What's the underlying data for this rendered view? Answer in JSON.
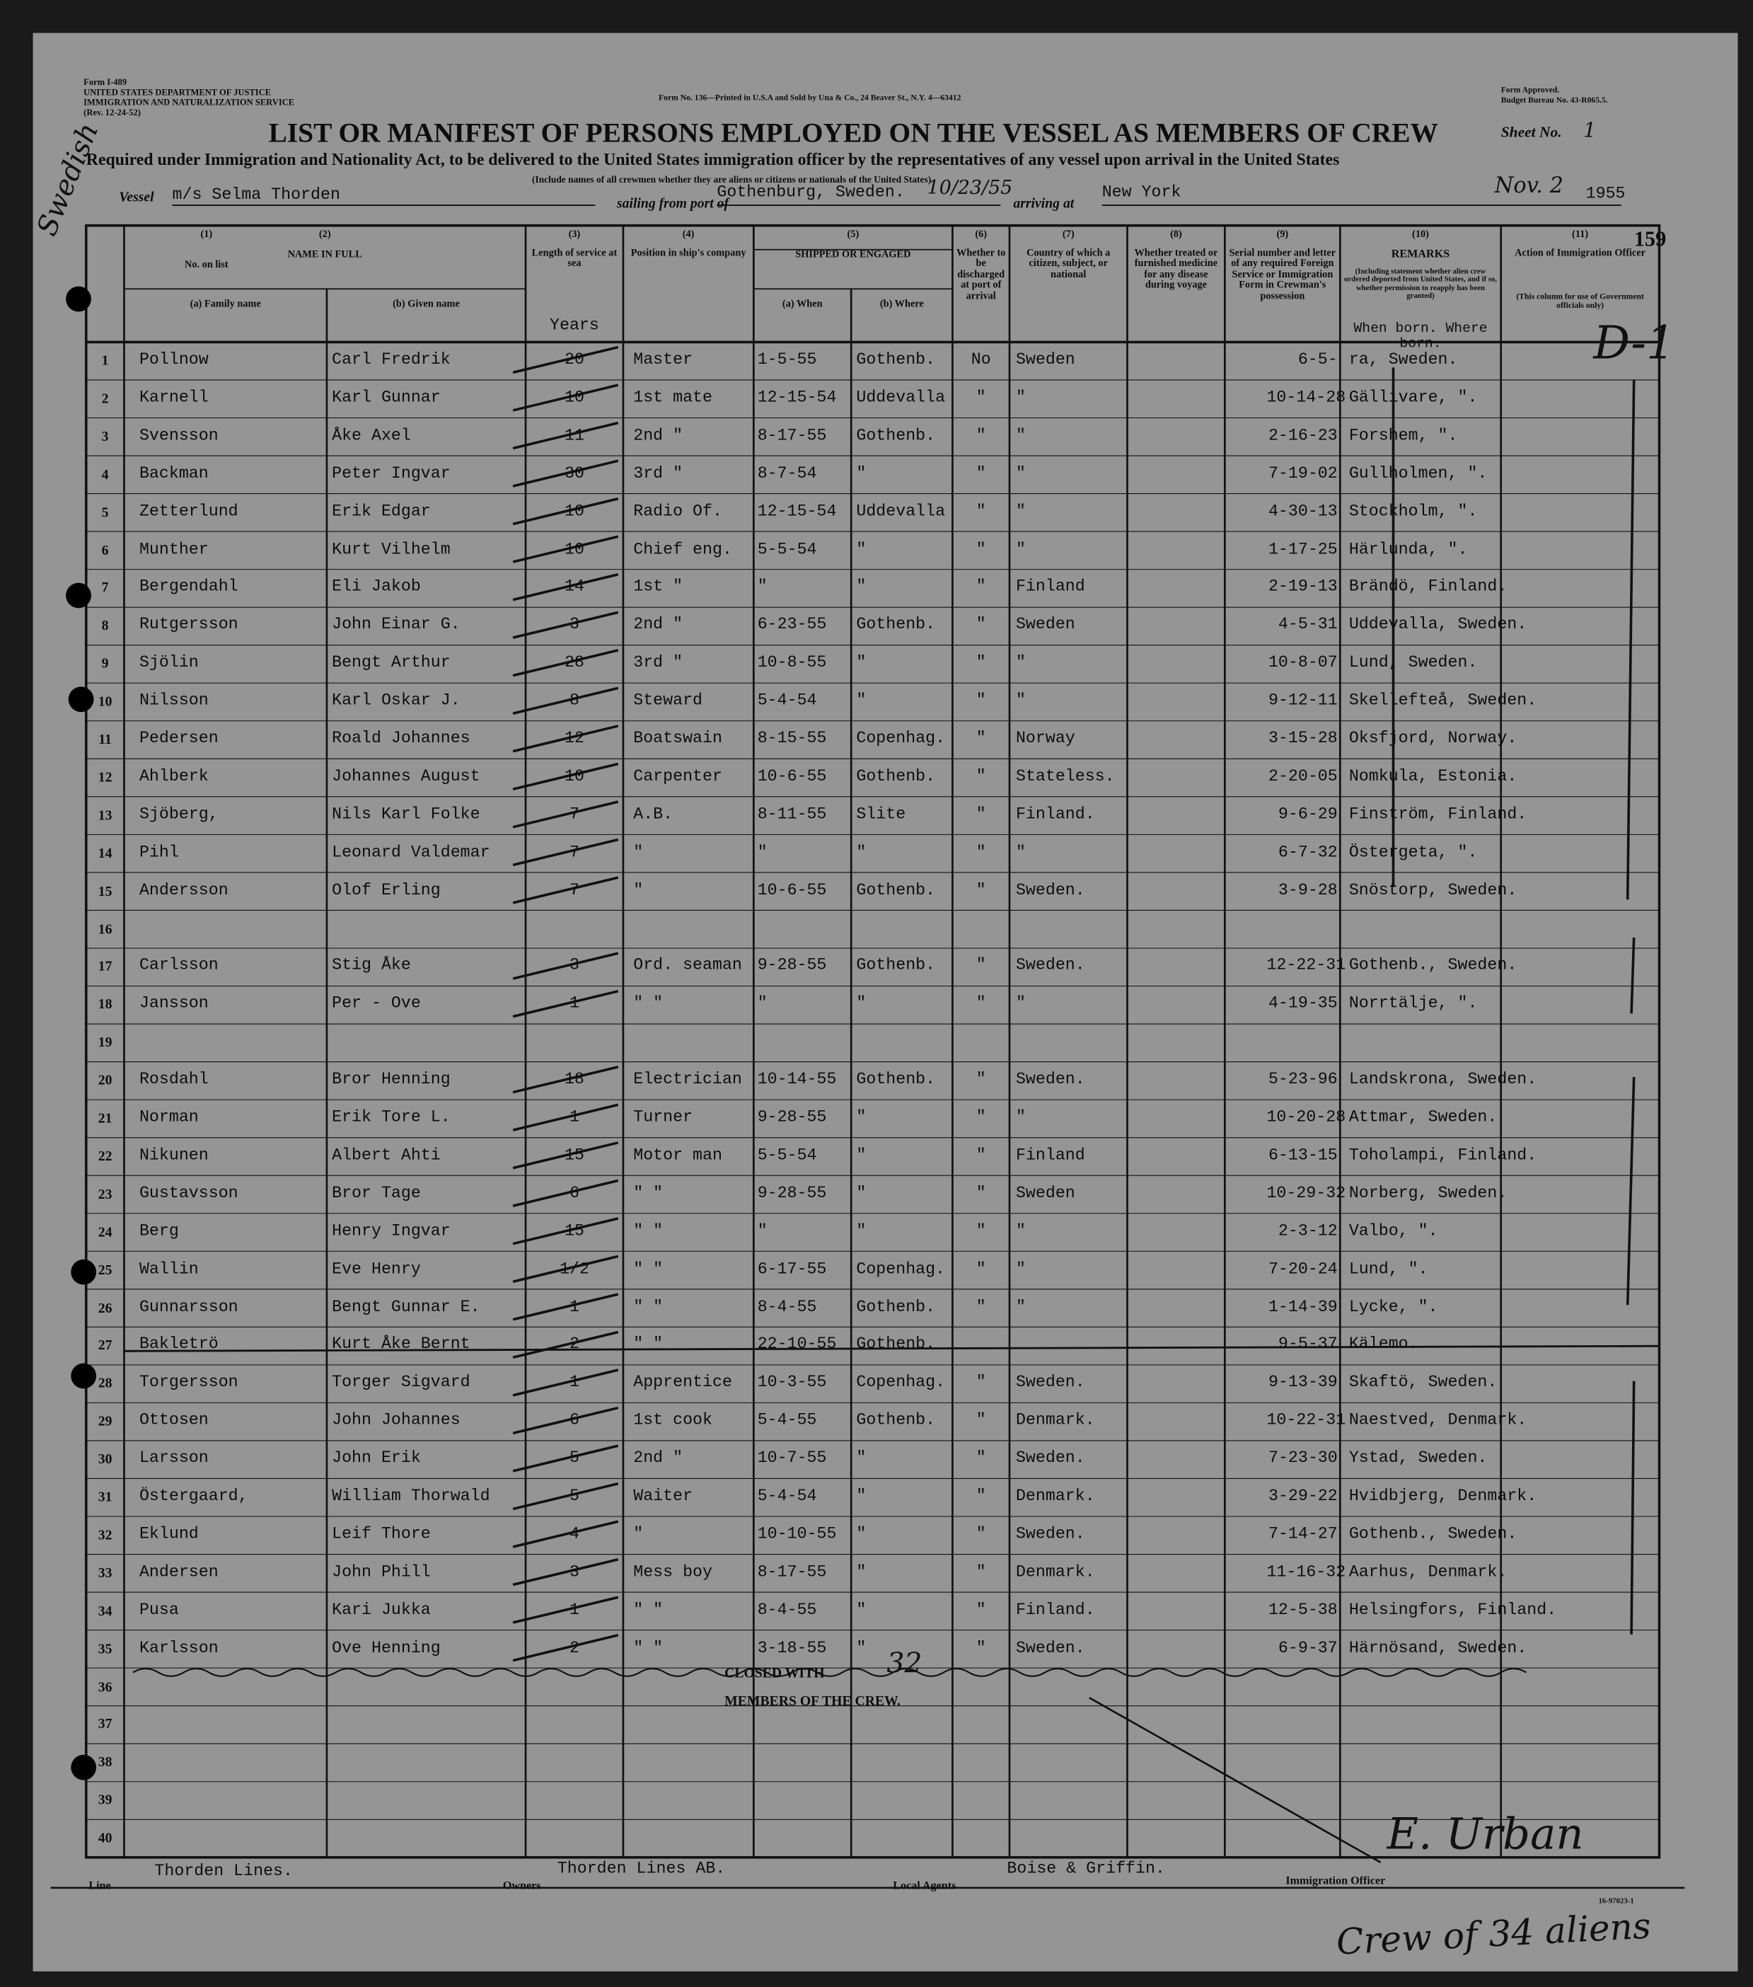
{
  "header": {
    "agency": [
      "Form I-489",
      "UNITED STATES DEPARTMENT OF JUSTICE",
      "IMMIGRATION AND NATURALIZATION SERVICE",
      "(Rev. 12-24-52)"
    ],
    "printer": "Form No. 136—Printed in U.S.A and Sold by Una & Co., 24 Beaver St., N.Y. 4—63412",
    "approval": [
      "Form Approved.",
      "Budget Bureau No. 43-R065.5."
    ],
    "title": "LIST OR MANIFEST OF PERSONS EMPLOYED ON THE VESSEL AS MEMBERS OF CREW",
    "sheet_label": "Sheet No.",
    "sheet_no": "1",
    "subtitle": "Required under Immigration and Nationality Act, to be delivered to the United States immigration officer by the representatives of any vessel upon arrival in the United States",
    "note": "(Include names of all crewmen whether they are aliens or citizens or nationals of the United States)"
  },
  "voyage": {
    "vessel_label": "Vessel",
    "vessel": "m/s Selma Thorden",
    "port_label": "sailing from port of",
    "port": "Gothenburg, Sweden.",
    "sailing_date": "10/23/55",
    "arriving_label": "arriving at",
    "arrival_port": "New York",
    "arrival_date": "Nov. 2",
    "year": "1955"
  },
  "page_number": "159",
  "columns": [
    {
      "num": "(1)",
      "label": "No. on list"
    },
    {
      "num": "(2)",
      "label": "NAME IN FULL",
      "sub": [
        "(a) Family name",
        "(b) Given name"
      ]
    },
    {
      "num": "(3)",
      "label": "Length of service at sea",
      "sub": [
        "Years"
      ]
    },
    {
      "num": "(4)",
      "label": "Position in ship's company"
    },
    {
      "num": "(5)",
      "label": "SHIPPED OR ENGAGED",
      "sub": [
        "(a) When",
        "(b) Where"
      ]
    },
    {
      "num": "(6)",
      "label": "Whether to be discharged at port of arrival"
    },
    {
      "num": "(7)",
      "label": "Country of which a citizen, subject, or national"
    },
    {
      "num": "(8)",
      "label": "Whether treated or furnished medicine for any disease during voyage"
    },
    {
      "num": "(9)",
      "label": "Serial number and letter of any required Foreign Service or Immigration Form in Crewman's possession"
    },
    {
      "num": "(10)",
      "label": "REMARKS",
      "sub": [
        "(Including statement whether alien crew ordered deported from United States, and if so, whether permission to reapply has been granted)",
        "When born. Where born."
      ]
    },
    {
      "num": "(11)",
      "label": "Action of Immigration Officer",
      "sub": [
        "(This column for use of Government officials only)"
      ]
    }
  ],
  "rows": [
    {
      "no": 1,
      "family": "Pollnow",
      "given": "Carl Fredrik",
      "years": "20",
      "position": "Master",
      "shipped_when": "1-5-55",
      "shipped_where": "Gothenb.",
      "discharged": "No",
      "country": "Sweden",
      "born_when": "6-5-",
      "born_where": "ra, Sweden."
    },
    {
      "no": 2,
      "family": "Karnell",
      "given": "Karl Gunnar",
      "years": "10",
      "position": "1st mate",
      "shipped_when": "12-15-54",
      "shipped_where": "Uddevalla",
      "discharged": "\"",
      "country": "\"",
      "born_when": "10-14-28",
      "born_where": "Gällivare, \"."
    },
    {
      "no": 3,
      "family": "Svensson",
      "given": "Åke Axel",
      "years": "11",
      "position": "2nd  \"",
      "shipped_when": "8-17-55",
      "shipped_where": "Gothenb.",
      "discharged": "\"",
      "country": "\"",
      "born_when": "2-16-23",
      "born_where": "Forshem, \"."
    },
    {
      "no": 4,
      "family": "Backman",
      "given": "Peter Ingvar",
      "years": "30",
      "position": "3rd  \"",
      "shipped_when": "8-7-54",
      "shipped_where": "\"",
      "discharged": "\"",
      "country": "\"",
      "born_when": "7-19-02",
      "born_where": "Gullholmen, \"."
    },
    {
      "no": 5,
      "family": "Zetterlund",
      "given": "Erik Edgar",
      "years": "10",
      "position": "Radio Of.",
      "shipped_when": "12-15-54",
      "shipped_where": "Uddevalla",
      "discharged": "\"",
      "country": "\"",
      "born_when": "4-30-13",
      "born_where": "Stockholm, \"."
    },
    {
      "no": 6,
      "family": "Munther",
      "given": "Kurt Vilhelm",
      "years": "10",
      "position": "Chief eng.",
      "shipped_when": "5-5-54",
      "shipped_where": "\"",
      "discharged": "\"",
      "country": "\"",
      "born_when": "1-17-25",
      "born_where": "Härlunda, \"."
    },
    {
      "no": 7,
      "family": "Bergendahl",
      "given": "Eli Jakob",
      "years": "14",
      "position": "1st  \"",
      "shipped_when": "\"",
      "shipped_where": "\"",
      "discharged": "\"",
      "country": "Finland",
      "born_when": "2-19-13",
      "born_where": "Brändö, Finland."
    },
    {
      "no": 8,
      "family": "Rutgersson",
      "given": "John Einar G.",
      "years": "3",
      "position": "2nd  \"",
      "shipped_when": "6-23-55",
      "shipped_where": "Gothenb.",
      "discharged": "\"",
      "country": "Sweden",
      "born_when": "4-5-31",
      "born_where": "Uddevalla, Sweden."
    },
    {
      "no": 9,
      "family": "Sjölin",
      "given": "Bengt Arthur",
      "years": "28",
      "position": "3rd  \"",
      "shipped_when": "10-8-55",
      "shipped_where": "\"",
      "discharged": "\"",
      "country": "\"",
      "born_when": "10-8-07",
      "born_where": "Lund, Sweden."
    },
    {
      "no": 10,
      "family": "Nilsson",
      "given": "Karl Oskar J.",
      "years": "8",
      "position": "Steward",
      "shipped_when": "5-4-54",
      "shipped_where": "\"",
      "discharged": "\"",
      "country": "\"",
      "born_when": "9-12-11",
      "born_where": "Skellefteå, Sweden."
    },
    {
      "no": 11,
      "family": "Pedersen",
      "given": "Roald Johannes",
      "years": "12",
      "position": "Boatswain",
      "shipped_when": "8-15-55",
      "shipped_where": "Copenhag.",
      "discharged": "\"",
      "country": "Norway",
      "born_when": "3-15-28",
      "born_where": "Oksfjord, Norway."
    },
    {
      "no": 12,
      "family": "Ahlberk",
      "given": "Johannes August",
      "years": "10",
      "position": "Carpenter",
      "shipped_when": "10-6-55",
      "shipped_where": "Gothenb.",
      "discharged": "\"",
      "country": "Stateless.",
      "born_when": "2-20-05",
      "born_where": "Nomkula, Estonia."
    },
    {
      "no": 13,
      "family": "Sjöberg,",
      "given": "Nils Karl Folke",
      "years": "7",
      "position": "A.B.",
      "shipped_when": "8-11-55",
      "shipped_where": "Slite",
      "discharged": "\"",
      "country": "Finland.",
      "born_when": "9-6-29",
      "born_where": "Finström, Finland."
    },
    {
      "no": 14,
      "family": "Pihl",
      "given": "Leonard Valdemar",
      "years": "7",
      "position": "\"",
      "shipped_when": "\"",
      "shipped_where": "\"",
      "discharged": "\"",
      "country": "\"",
      "born_when": "6-7-32",
      "born_where": "Östergeta, \"."
    },
    {
      "no": 15,
      "family": "Andersson",
      "given": "Olof Erling",
      "years": "7",
      "position": "\"",
      "shipped_when": "10-6-55",
      "shipped_where": "Gothenb.",
      "discharged": "\"",
      "country": "Sweden.",
      "born_when": "3-9-28",
      "born_where": "Snöstorp, Sweden."
    },
    {
      "no": 16
    },
    {
      "no": 17,
      "family": "Carlsson",
      "given": "Stig Åke",
      "years": "3",
      "position": "Ord. seaman",
      "shipped_when": "9-28-55",
      "shipped_where": "Gothenb.",
      "discharged": "\"",
      "country": "Sweden.",
      "born_when": "12-22-31",
      "born_where": "Gothenb., Sweden."
    },
    {
      "no": 18,
      "family": "Jansson",
      "given": "Per - Ove",
      "years": "1",
      "position": "\"   \"",
      "shipped_when": "\"",
      "shipped_where": "\"",
      "discharged": "\"",
      "country": "\"",
      "born_when": "4-19-35",
      "born_where": "Norrtälje, \"."
    },
    {
      "no": 19
    },
    {
      "no": 20,
      "family": "Rosdahl",
      "given": "Bror Henning",
      "years": "18",
      "position": "Electrician",
      "shipped_when": "10-14-55",
      "shipped_where": "Gothenb.",
      "discharged": "\"",
      "country": "Sweden.",
      "born_when": "5-23-96",
      "born_where": "Landskrona, Sweden."
    },
    {
      "no": 21,
      "family": "Norman",
      "given": "Erik Tore L.",
      "years": "1",
      "position": "Turner",
      "shipped_when": "9-28-55",
      "shipped_where": "\"",
      "discharged": "\"",
      "country": "\"",
      "born_when": "10-20-28",
      "born_where": "Attmar, Sweden."
    },
    {
      "no": 22,
      "family": "Nikunen",
      "given": "Albert Ahti",
      "years": "15",
      "position": "Motor man",
      "shipped_when": "5-5-54",
      "shipped_where": "\"",
      "discharged": "\"",
      "country": "Finland",
      "born_when": "6-13-15",
      "born_where": "Toholampi, Finland."
    },
    {
      "no": 23,
      "family": "Gustavsson",
      "given": "Bror Tage",
      "years": "6",
      "position": "\"   \"",
      "shipped_when": "9-28-55",
      "shipped_where": "\"",
      "discharged": "\"",
      "country": "Sweden",
      "born_when": "10-29-32",
      "born_where": "Norberg, Sweden."
    },
    {
      "no": 24,
      "family": "Berg",
      "given": "Henry Ingvar",
      "years": "15",
      "position": "\"   \"",
      "shipped_when": "\"",
      "shipped_where": "\"",
      "discharged": "\"",
      "country": "\"",
      "born_when": "2-3-12",
      "born_where": "Valbo, \"."
    },
    {
      "no": 25,
      "family": "Wallin",
      "given": "Eve Henry",
      "years": "1/2",
      "position": "\"   \"",
      "shipped_when": "6-17-55",
      "shipped_where": "Copenhag.",
      "discharged": "\"",
      "country": "\"",
      "born_when": "7-20-24",
      "born_where": "Lund, \"."
    },
    {
      "no": 26,
      "family": "Gunnarsson",
      "given": "Bengt Gunnar E.",
      "years": "1",
      "position": "\"   \"",
      "shipped_when": "8-4-55",
      "shipped_where": "Gothenb.",
      "discharged": "\"",
      "country": "\"",
      "born_when": "1-14-39",
      "born_where": "Lycke, \"."
    },
    {
      "no": 27,
      "family": "Bakletrö",
      "given": "Kurt Åke Bernt",
      "years": "2",
      "position": "\"   \"",
      "shipped_when": "22-10-55",
      "shipped_where": "Gothenb.",
      "born_when": "9-5-37",
      "born_where": "Kälemo.",
      "struck": true
    },
    {
      "no": 28,
      "family": "Torgersson",
      "given": "Torger Sigvard",
      "years": "1",
      "position": "Apprentice",
      "shipped_when": "10-3-55",
      "shipped_where": "Copenhag.",
      "discharged": "\"",
      "country": "Sweden.",
      "born_when": "9-13-39",
      "born_where": "Skaftö, Sweden."
    },
    {
      "no": 29,
      "family": "Ottosen",
      "given": "John Johannes",
      "years": "6",
      "position": "1st cook",
      "shipped_when": "5-4-55",
      "shipped_where": "Gothenb.",
      "discharged": "\"",
      "country": "Denmark.",
      "born_when": "10-22-31",
      "born_where": "Naestved, Denmark."
    },
    {
      "no": 30,
      "family": "Larsson",
      "given": "John Erik",
      "years": "5",
      "position": "2nd  \"",
      "shipped_when": "10-7-55",
      "shipped_where": "\"",
      "discharged": "\"",
      "country": "Sweden.",
      "born_when": "7-23-30",
      "born_where": "Ystad, Sweden."
    },
    {
      "no": 31,
      "family": "Östergaard,",
      "given": "William Thorwald",
      "years": "5",
      "position": "Waiter",
      "shipped_when": "5-4-54",
      "shipped_where": "\"",
      "discharged": "\"",
      "country": "Denmark.",
      "born_when": "3-29-22",
      "born_where": "Hvidbjerg, Denmark."
    },
    {
      "no": 32,
      "family": "Eklund",
      "given": "Leif Thore",
      "years": "4",
      "position": "\"",
      "shipped_when": "10-10-55",
      "shipped_where": "\"",
      "discharged": "\"",
      "country": "Sweden.",
      "born_when": "7-14-27",
      "born_where": "Gothenb., Sweden."
    },
    {
      "no": 33,
      "family": "Andersen",
      "given": "John Phill",
      "years": "3",
      "position": "Mess boy",
      "shipped_when": "8-17-55",
      "shipped_where": "\"",
      "discharged": "\"",
      "country": "Denmark.",
      "born_when": "11-16-32",
      "born_where": "Aarhus, Denmark."
    },
    {
      "no": 34,
      "family": "Pusa",
      "given": "Kari Jukka",
      "years": "1",
      "position": "\"   \"",
      "shipped_when": "8-4-55",
      "shipped_where": "\"",
      "discharged": "\"",
      "country": "Finland.",
      "born_when": "12-5-38",
      "born_where": "Helsingfors, Finland."
    },
    {
      "no": 35,
      "family": "Karlsson",
      "given": "Ove Henning",
      "years": "2",
      "position": "\"   \"",
      "shipped_when": "3-18-55",
      "shipped_where": "\"",
      "discharged": "\"",
      "country": "Sweden.",
      "born_when": "6-9-37",
      "born_where": "Härnösand, Sweden."
    },
    {
      "no": 36
    },
    {
      "no": 37
    },
    {
      "no": 38
    },
    {
      "no": 39
    },
    {
      "no": 40
    }
  ],
  "closing": {
    "text": [
      "CLOSED WITH",
      "MEMBERS OF THE CREW."
    ],
    "count": "32"
  },
  "footer": {
    "line_label": "Line",
    "line": "Thorden Lines.",
    "owners_label": "Owners",
    "owners": "Thorden Lines AB.",
    "agents_label": "Local Agents",
    "agents": "Boise & Griffin.",
    "officer_label": "Immigration Officer",
    "officer": "E. Urban",
    "form_code": "16-97023-1"
  },
  "annotations": {
    "stamp": "Swedish",
    "action": "D-1",
    "summary": "Crew of 34 aliens"
  }
}
